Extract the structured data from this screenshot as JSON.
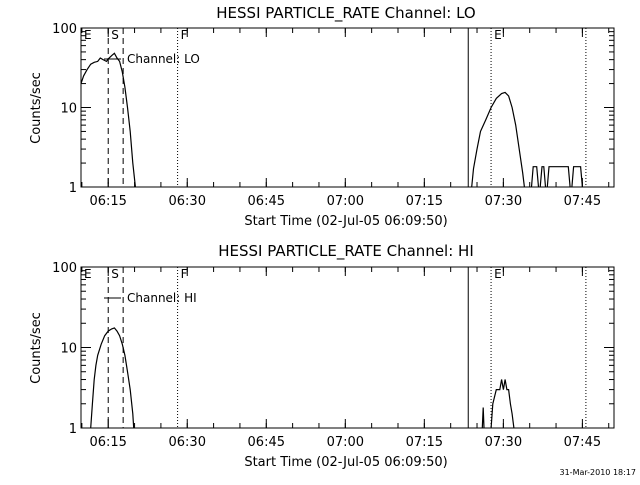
{
  "footer": "31-Mar-2010 18:17",
  "chart_data": [
    {
      "type": "line",
      "title": "HESSI PARTICLE_RATE Channel: LO",
      "xlabel": "Start Time (02-Jul-05 06:09:50)",
      "ylabel": "Counts/sec",
      "y_scale": "log",
      "ylim": [
        1,
        100
      ],
      "xlim": [
        "06:09:50",
        "07:51:00"
      ],
      "y_ticks": [
        {
          "v": 1,
          "label": "1"
        },
        {
          "v": 10,
          "label": "10"
        },
        {
          "v": 100,
          "label": "100"
        }
      ],
      "x_ticks": [
        {
          "t": "06:15",
          "label": "06:15"
        },
        {
          "t": "06:30",
          "label": "06:30"
        },
        {
          "t": "06:45",
          "label": "06:45"
        },
        {
          "t": "07:00",
          "label": "07:00"
        },
        {
          "t": "07:15",
          "label": "07:15"
        },
        {
          "t": "07:30",
          "label": "07:30"
        },
        {
          "t": "07:45",
          "label": "07:45"
        }
      ],
      "legend": "Channel: LO",
      "grid": false,
      "event_markers": [
        {
          "label": "E",
          "time": "06:09:50",
          "style": "none"
        },
        {
          "label": "S",
          "time": "06:15:00",
          "style": "dashed"
        },
        {
          "label": "",
          "time": "06:17:50",
          "style": "dashed"
        },
        {
          "label": "F",
          "time": "06:28:10",
          "style": "dotted"
        },
        {
          "label": "",
          "time": "07:23:20",
          "style": "solid"
        },
        {
          "label": "E",
          "time": "07:27:40",
          "style": "dotted"
        },
        {
          "label": "",
          "time": "07:45:40",
          "style": "dotted"
        }
      ],
      "segments": [
        [
          [
            "06:09:50",
            20
          ],
          [
            "06:10:20",
            25
          ],
          [
            "06:11:00",
            30
          ],
          [
            "06:11:40",
            35
          ],
          [
            "06:12:20",
            37
          ],
          [
            "06:13:00",
            38
          ],
          [
            "06:13:30",
            42
          ],
          [
            "06:14:00",
            40
          ],
          [
            "06:14:40",
            38
          ],
          [
            "06:15:10",
            42
          ],
          [
            "06:15:40",
            45
          ],
          [
            "06:16:10",
            48
          ],
          [
            "06:16:40",
            42
          ],
          [
            "06:17:10",
            38
          ],
          [
            "06:17:40",
            28
          ],
          [
            "06:18:10",
            18
          ],
          [
            "06:18:40",
            10
          ],
          [
            "06:19:10",
            5
          ],
          [
            "06:19:40",
            2
          ],
          [
            "06:20:10",
            1
          ]
        ],
        [
          [
            "07:24:00",
            1
          ],
          [
            "07:24:20",
            1.7
          ],
          [
            "07:25:00",
            3
          ],
          [
            "07:25:40",
            5
          ],
          [
            "07:26:40",
            7
          ],
          [
            "07:27:40",
            10
          ],
          [
            "07:28:40",
            13
          ],
          [
            "07:29:40",
            15
          ],
          [
            "07:30:20",
            15.5
          ],
          [
            "07:31:00",
            14
          ],
          [
            "07:31:40",
            10
          ],
          [
            "07:32:20",
            6
          ],
          [
            "07:33:00",
            3
          ],
          [
            "07:33:40",
            1.5
          ],
          [
            "07:34:00",
            1
          ]
        ],
        [
          [
            "07:35:20",
            1
          ],
          [
            "07:35:40",
            1.8
          ],
          [
            "07:36:20",
            1.8
          ],
          [
            "07:36:40",
            1
          ]
        ],
        [
          [
            "07:37:00",
            1
          ],
          [
            "07:37:20",
            1.8
          ],
          [
            "07:37:40",
            1.8
          ],
          [
            "07:38:00",
            1
          ]
        ],
        [
          [
            "07:38:20",
            1
          ],
          [
            "07:38:40",
            1.8
          ],
          [
            "07:39:20",
            1.8
          ],
          [
            "07:40:00",
            1.8
          ],
          [
            "07:40:40",
            1.8
          ],
          [
            "07:41:20",
            1.8
          ],
          [
            "07:42:00",
            1.8
          ],
          [
            "07:42:20",
            1.8
          ],
          [
            "07:42:40",
            1
          ]
        ],
        [
          [
            "07:43:00",
            1
          ],
          [
            "07:43:20",
            1.8
          ],
          [
            "07:44:00",
            1.8
          ],
          [
            "07:44:40",
            1.8
          ],
          [
            "07:45:00",
            1
          ]
        ]
      ]
    },
    {
      "type": "line",
      "title": "HESSI PARTICLE_RATE Channel: HI",
      "xlabel": "Start Time (02-Jul-05 06:09:50)",
      "ylabel": "Counts/sec",
      "y_scale": "log",
      "ylim": [
        1,
        100
      ],
      "xlim": [
        "06:09:50",
        "07:51:00"
      ],
      "y_ticks": [
        {
          "v": 1,
          "label": "1"
        },
        {
          "v": 10,
          "label": "10"
        },
        {
          "v": 100,
          "label": "100"
        }
      ],
      "x_ticks": [
        {
          "t": "06:15",
          "label": "06:15"
        },
        {
          "t": "06:30",
          "label": "06:30"
        },
        {
          "t": "06:45",
          "label": "06:45"
        },
        {
          "t": "07:00",
          "label": "07:00"
        },
        {
          "t": "07:15",
          "label": "07:15"
        },
        {
          "t": "07:30",
          "label": "07:30"
        },
        {
          "t": "07:45",
          "label": "07:45"
        }
      ],
      "legend": "Channel: HI",
      "grid": false,
      "event_markers": [
        {
          "label": "E",
          "time": "06:09:50",
          "style": "none"
        },
        {
          "label": "S",
          "time": "06:15:00",
          "style": "dashed"
        },
        {
          "label": "",
          "time": "06:17:50",
          "style": "dashed"
        },
        {
          "label": "F",
          "time": "06:28:10",
          "style": "dotted"
        },
        {
          "label": "",
          "time": "07:23:20",
          "style": "solid"
        },
        {
          "label": "E",
          "time": "07:27:40",
          "style": "dotted"
        },
        {
          "label": "",
          "time": "07:45:40",
          "style": "dotted"
        }
      ],
      "segments": [
        [
          [
            "06:11:40",
            1
          ],
          [
            "06:12:00",
            2
          ],
          [
            "06:12:20",
            4
          ],
          [
            "06:12:40",
            6
          ],
          [
            "06:13:00",
            8
          ],
          [
            "06:13:40",
            11
          ],
          [
            "06:14:20",
            14
          ],
          [
            "06:15:00",
            16
          ],
          [
            "06:15:40",
            17
          ],
          [
            "06:16:10",
            17.5
          ],
          [
            "06:16:40",
            16
          ],
          [
            "06:17:10",
            14
          ],
          [
            "06:17:40",
            11
          ],
          [
            "06:18:10",
            8
          ],
          [
            "06:18:40",
            5
          ],
          [
            "06:19:10",
            3
          ],
          [
            "06:19:40",
            1.5
          ],
          [
            "06:19:50",
            1
          ]
        ],
        [
          [
            "07:26:00",
            1
          ],
          [
            "07:26:10",
            1.8
          ],
          [
            "07:26:20",
            1
          ]
        ],
        [
          [
            "07:27:40",
            1
          ],
          [
            "07:28:00",
            2
          ],
          [
            "07:28:40",
            3
          ],
          [
            "07:29:20",
            3
          ],
          [
            "07:29:40",
            4
          ],
          [
            "07:30:00",
            3
          ],
          [
            "07:30:20",
            4
          ],
          [
            "07:30:40",
            3
          ],
          [
            "07:31:00",
            3
          ],
          [
            "07:31:20",
            2
          ],
          [
            "07:31:40",
            1.5
          ],
          [
            "07:32:00",
            1
          ]
        ]
      ]
    }
  ]
}
